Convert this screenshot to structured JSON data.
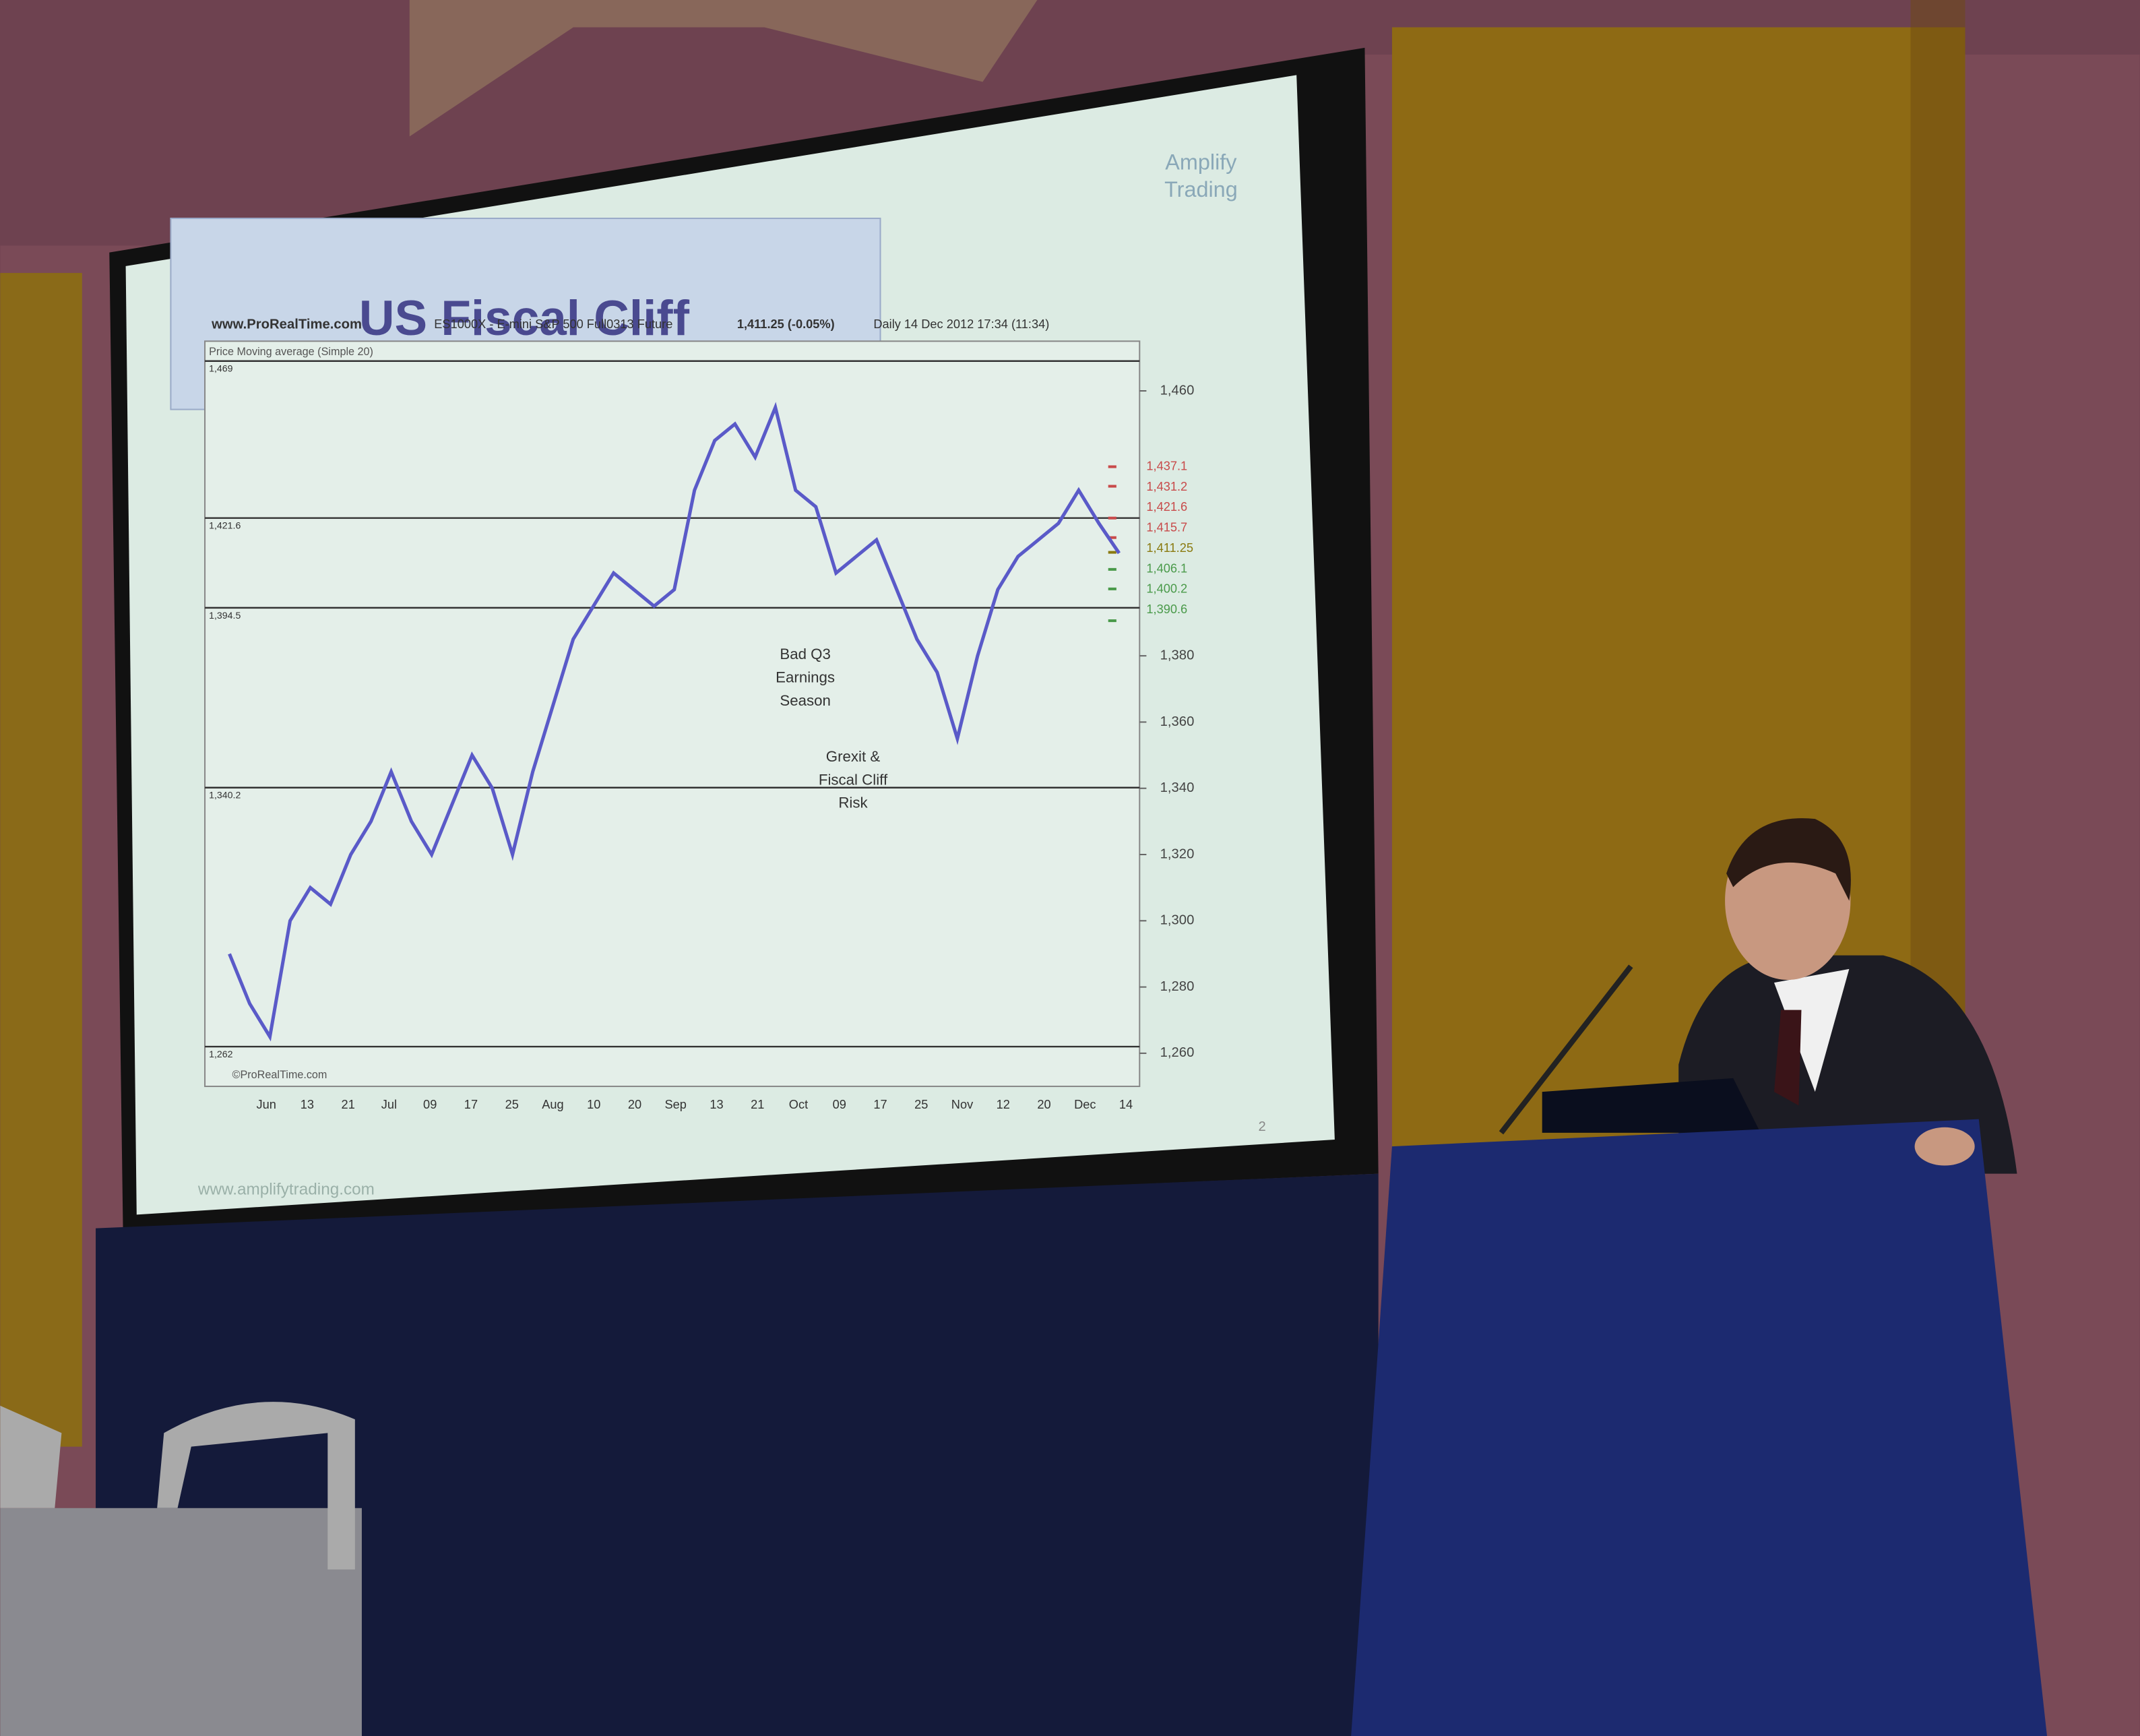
{
  "slide": {
    "title": "US Fiscal Cliff",
    "logo": [
      "Amplify",
      "Trading"
    ],
    "footer": "www.amplifytrading.com",
    "page_number": "2"
  },
  "chart_data": {
    "type": "line",
    "source": "www.ProRealTime.com",
    "instrument": "ES1000X - E-mini S&P 500 Full0313 Future",
    "last": "1,411.25 (-0.05%)",
    "period": "Daily  14 Dec 2012 17:34 (11:34)",
    "indicator": "Price Moving average (Simple 20)",
    "copyright": "©ProRealTime.com",
    "x_labels": [
      "Jun",
      "13",
      "21",
      "Jul",
      "09",
      "17",
      "25",
      "Aug",
      "10",
      "20",
      "Sep",
      "13",
      "21",
      "Oct",
      "09",
      "17",
      "25",
      "Nov",
      "12",
      "20",
      "Dec",
      "14"
    ],
    "series": [
      {
        "name": "Price",
        "color": "#5a5ac8",
        "values": [
          1290,
          1275,
          1265,
          1300,
          1310,
          1305,
          1320,
          1330,
          1345,
          1330,
          1320,
          1335,
          1350,
          1340,
          1320,
          1345,
          1365,
          1385,
          1395,
          1405,
          1400,
          1395,
          1400,
          1430,
          1445,
          1450,
          1440,
          1455,
          1430,
          1425,
          1405,
          1410,
          1415,
          1400,
          1385,
          1375,
          1355,
          1380,
          1400,
          1410,
          1415,
          1420,
          1430,
          1420,
          1411
        ]
      }
    ],
    "ylim": [
      1250,
      1475
    ],
    "yticks": [
      {
        "value": 1260,
        "label": "1,260"
      },
      {
        "value": 1280,
        "label": "1,280"
      },
      {
        "value": 1300,
        "label": "1,300"
      },
      {
        "value": 1320,
        "label": "1,320"
      },
      {
        "value": 1340,
        "label": "1,340"
      },
      {
        "value": 1360,
        "label": "1,360"
      },
      {
        "value": 1380,
        "label": "1,380"
      },
      {
        "value": 1460,
        "label": "1,460"
      }
    ],
    "lines": [
      {
        "value": 1469,
        "label": "1,469"
      },
      {
        "value": 1421.6,
        "label": "1,421.6"
      },
      {
        "value": 1394.5,
        "label": "1,394.5"
      },
      {
        "value": 1340.2,
        "label": "1,340.2"
      },
      {
        "value": 1262,
        "label": "1,262"
      }
    ],
    "levels": [
      {
        "value": 1437.1,
        "label": "1,437.1",
        "color": "#c84a4a"
      },
      {
        "value": 1431.2,
        "label": "1,431.2",
        "color": "#c84a4a"
      },
      {
        "value": 1421.6,
        "label": "1,421.6",
        "color": "#c84a4a"
      },
      {
        "value": 1415.7,
        "label": "1,415.7",
        "color": "#c84a4a"
      },
      {
        "value": 1411.25,
        "label": "1,411.25",
        "color": "#8a7a10"
      },
      {
        "value": 1406.1,
        "label": "1,406.1",
        "color": "#4a9a4a"
      },
      {
        "value": 1400.2,
        "label": "1,400.2",
        "color": "#4a9a4a"
      },
      {
        "value": 1390.6,
        "label": "1,390.6",
        "color": "#4a9a4a"
      }
    ],
    "annotations": [
      [
        "Bad Q3",
        "Earnings",
        "Season"
      ],
      [
        "Grexit &",
        "Fiscal Cliff",
        "Risk"
      ]
    ]
  }
}
